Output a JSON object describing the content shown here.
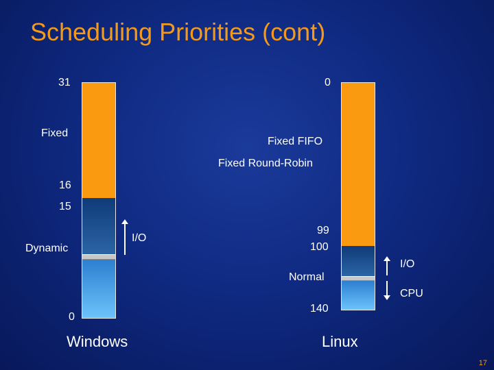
{
  "title": "Scheduling Priorities (cont)",
  "windows": {
    "label": "Windows",
    "top_number": "31",
    "fixed_label": "Fixed",
    "num_16": "16",
    "num_15": "15",
    "dynamic_label": "Dynamic",
    "bottom_number": "0",
    "io_label": "I/O"
  },
  "linux": {
    "label": "Linux",
    "top_number": "0",
    "fixed_fifo_label": "Fixed FIFO",
    "fixed_rr_label": "Fixed Round-Robin",
    "num_99": "99",
    "num_100": "100",
    "normal_label": "Normal",
    "num_140": "140",
    "io_label": "I/O",
    "cpu_label": "CPU"
  },
  "page_number": "17",
  "colors": {
    "title": "#f39a1c",
    "fixed_segment": "#f99a10",
    "dynamic_segment_top": "#103a78",
    "dynamic_segment_bottom": "#6cc3fa",
    "background": "#0f2a82"
  },
  "icons": [
    "up-arrow-icon",
    "down-arrow-icon"
  ]
}
